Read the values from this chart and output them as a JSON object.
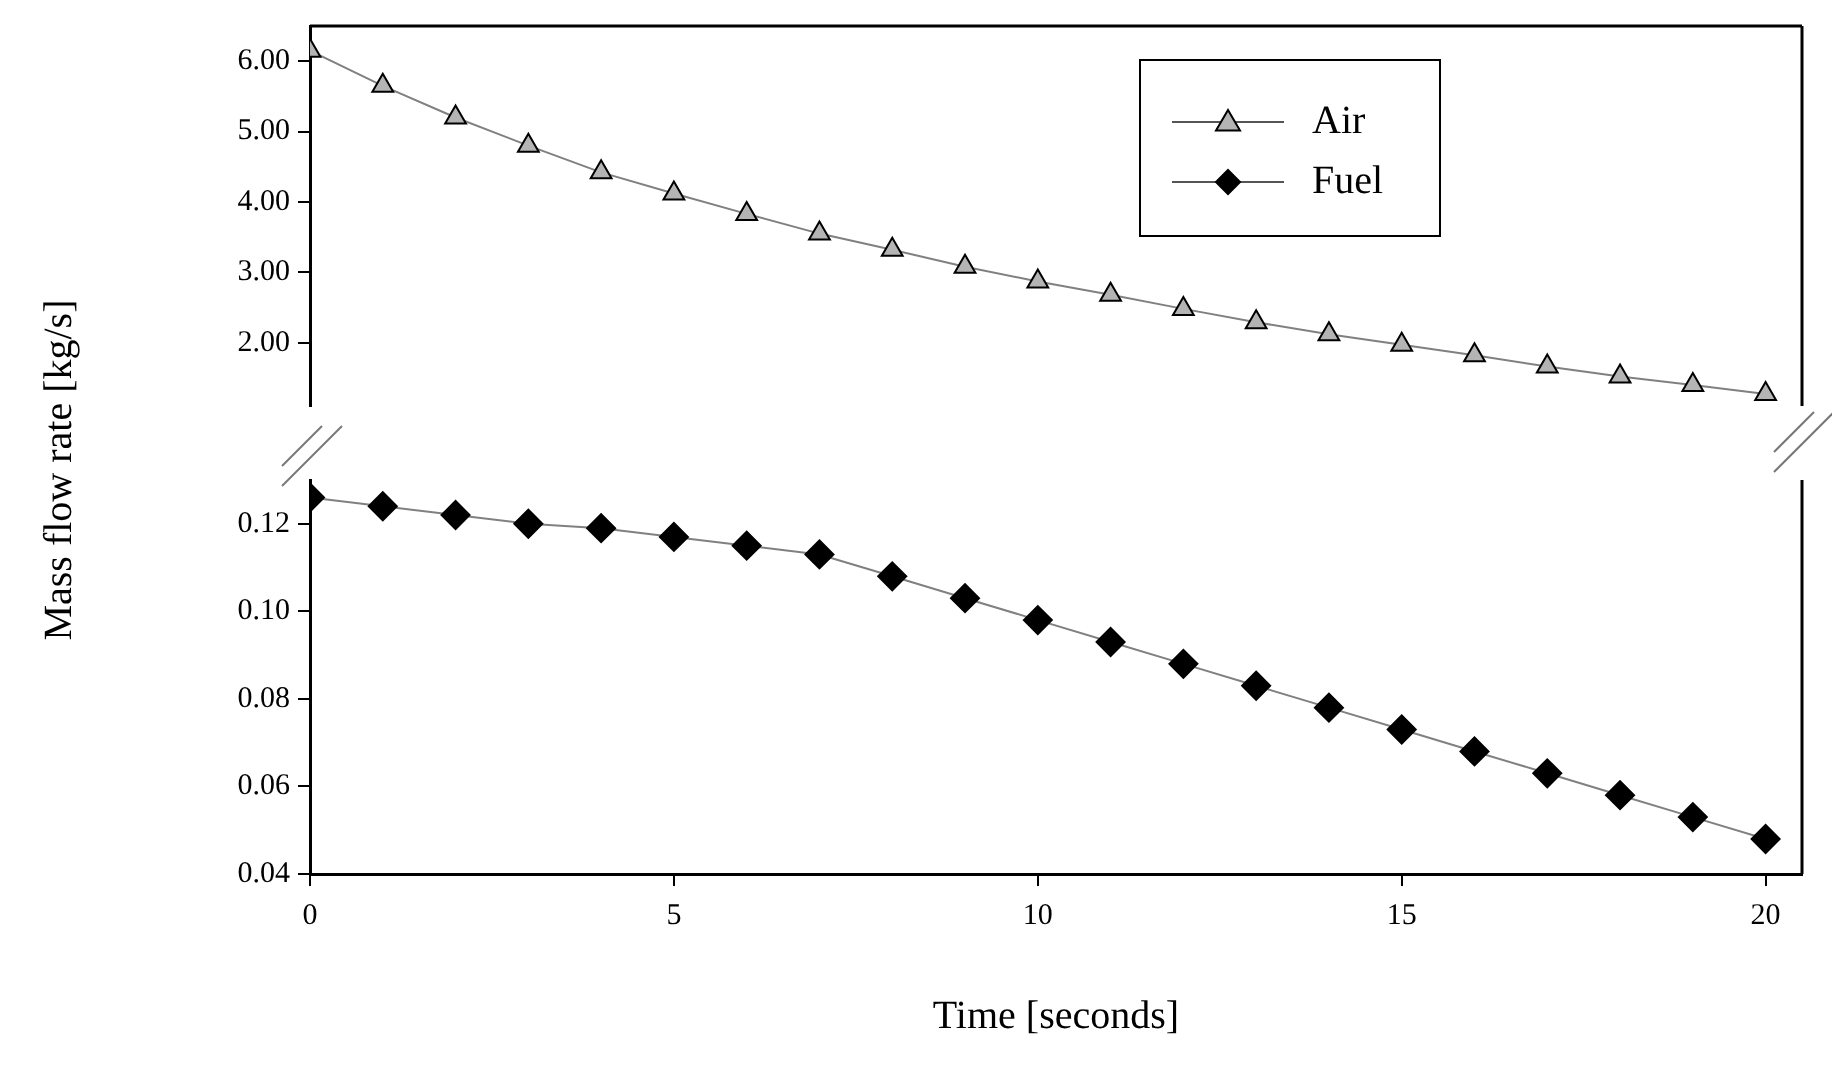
{
  "chart_data": [
    {
      "type": "line",
      "ylabel": "Mass flow rate [kg/s]",
      "x": [
        0,
        1,
        2,
        3,
        4,
        5,
        6,
        7,
        8,
        9,
        10,
        11,
        12,
        13,
        14,
        15,
        16,
        17,
        18,
        19,
        20
      ],
      "xlim": [
        0,
        20.5
      ],
      "xticks": [
        0,
        5,
        10,
        15,
        20
      ],
      "ylim": [
        1.1,
        6.5
      ],
      "yticks": [
        {
          "value": 2,
          "label": "2.00"
        },
        {
          "value": 3,
          "label": "3.00"
        },
        {
          "value": 4,
          "label": "4.00"
        },
        {
          "value": 5,
          "label": "5.00"
        },
        {
          "value": 6,
          "label": "6.00"
        }
      ],
      "tick_labels": "y",
      "legend": "top right",
      "line_style": "solid",
      "series": [
        {
          "name": "Air",
          "color": "#b4b4b4",
          "marker": "triangle",
          "values": [
            6.15,
            5.65,
            5.2,
            4.8,
            4.42,
            4.12,
            3.83,
            3.55,
            3.32,
            3.08,
            2.87,
            2.68,
            2.48,
            2.29,
            2.12,
            1.97,
            1.82,
            1.66,
            1.52,
            1.4,
            1.27
          ]
        }
      ]
    },
    {
      "type": "line",
      "xlabel": "Time [seconds]",
      "x": [
        0,
        1,
        2,
        3,
        4,
        5,
        6,
        7,
        8,
        9,
        10,
        11,
        12,
        13,
        14,
        15,
        16,
        17,
        18,
        19,
        20
      ],
      "xlim": [
        0,
        20.5
      ],
      "xticks": [
        0,
        5,
        10,
        15,
        20
      ],
      "ylim": [
        0.04,
        0.13
      ],
      "yticks": [
        0.04,
        0.06,
        0.08,
        {
          "value": 0.1,
          "label": "0.10"
        },
        0.12
      ],
      "legend": "top",
      "line_style": "solid",
      "series": [
        {
          "name": "Fuel",
          "color": "#000000",
          "marker": "diamond",
          "values": [
            0.126,
            0.124,
            0.122,
            0.12,
            0.119,
            0.117,
            0.115,
            0.113,
            0.108,
            0.103,
            0.098,
            0.093,
            0.088,
            0.083,
            0.078,
            0.073,
            0.068,
            0.063,
            0.058,
            0.053,
            0.048
          ]
        }
      ]
    }
  ]
}
